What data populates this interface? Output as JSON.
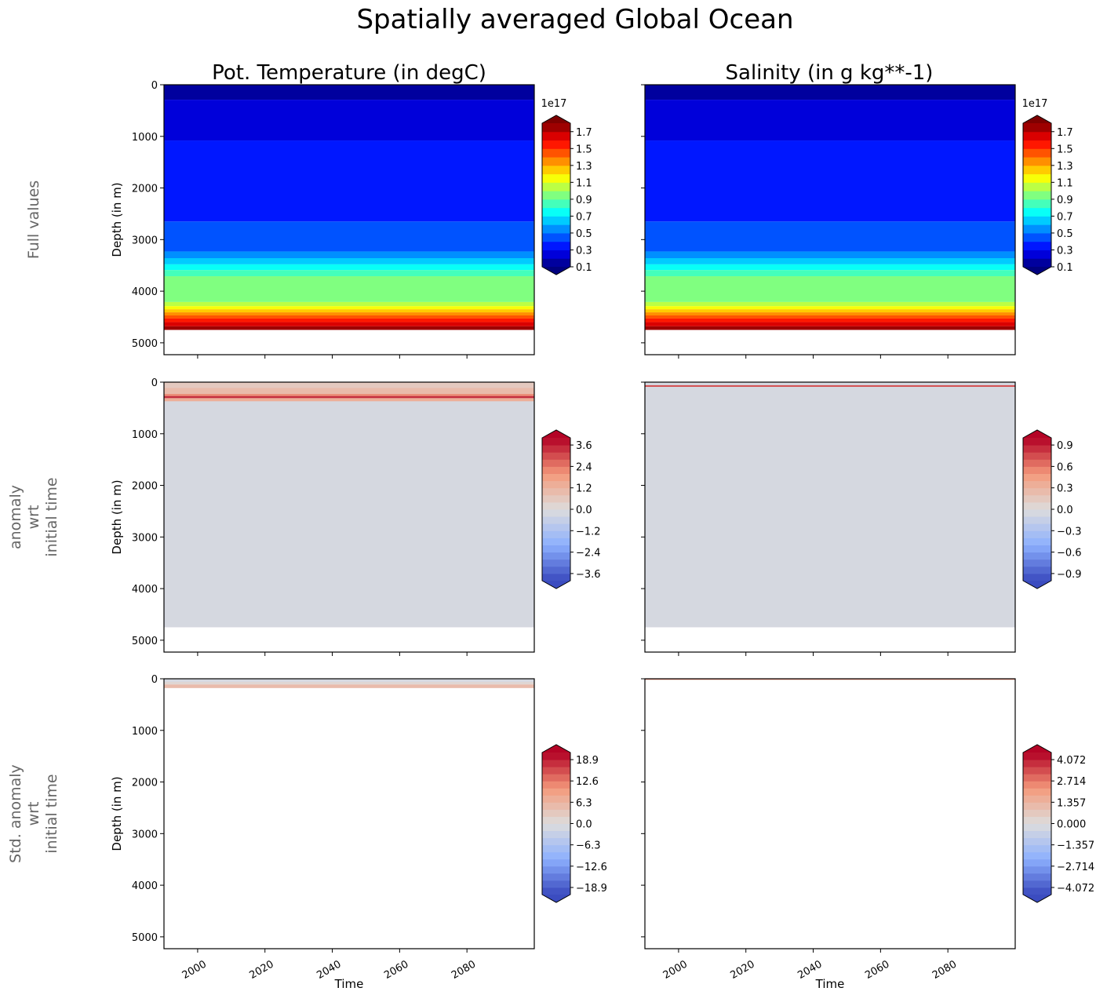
{
  "figure": {
    "title": "Spatially averaged Global Ocean",
    "column_titles": [
      "Pot. Temperature (in degC)",
      "Salinity (in g kg**-1)"
    ],
    "row_labels": [
      [
        "Full values"
      ],
      [
        "anomaly",
        "wrt",
        "initial time"
      ],
      [
        "Std. anomaly",
        "wrt",
        "initial time"
      ]
    ]
  },
  "chart_data": [
    {
      "type": "heatmap",
      "row": 0,
      "col": 0,
      "colormap": "jet",
      "xlabel": "",
      "ylabel": "Depth (in m)",
      "xlim": [
        1990,
        2100
      ],
      "ylim": [
        5230,
        0
      ],
      "xticks": [
        2000,
        2020,
        2040,
        2060,
        2080
      ],
      "xtick_labels_shown": false,
      "yticks": [
        0,
        1000,
        2000,
        3000,
        4000,
        5000
      ],
      "ytick_labels_shown": true,
      "levels": {
        "min": 0.1,
        "max": 1.8,
        "step": 0.1
      },
      "extend": "both",
      "colorbar_ticks": [
        0.1,
        0.3,
        0.5,
        0.7,
        0.9,
        1.1,
        1.3,
        1.5,
        1.7
      ],
      "colorbar_tick_labels": [
        "0.1",
        "0.3",
        "0.5",
        "0.7",
        "0.9",
        "1.1",
        "1.3",
        "1.5",
        "1.7"
      ],
      "colorbar_offset_text": "1e17",
      "bands": [
        {
          "depth": [
            0,
            290
          ],
          "value": 0.15
        },
        {
          "depth": [
            290,
            1080
          ],
          "value": 0.25
        },
        {
          "depth": [
            1080,
            2650
          ],
          "value": 0.35
        },
        {
          "depth": [
            2650,
            3230
          ],
          "value": 0.45
        },
        {
          "depth": [
            3230,
            3360
          ],
          "value": 0.55
        },
        {
          "depth": [
            3360,
            3480
          ],
          "value": 0.65
        },
        {
          "depth": [
            3480,
            3590
          ],
          "value": 0.75
        },
        {
          "depth": [
            3590,
            3710
          ],
          "value": 0.85
        },
        {
          "depth": [
            3710,
            4210
          ],
          "value": 0.95
        },
        {
          "depth": [
            4210,
            4290
          ],
          "value": 1.05
        },
        {
          "depth": [
            4290,
            4350
          ],
          "value": 1.15
        },
        {
          "depth": [
            4350,
            4410
          ],
          "value": 1.25
        },
        {
          "depth": [
            4410,
            4470
          ],
          "value": 1.35
        },
        {
          "depth": [
            4470,
            4530
          ],
          "value": 1.45
        },
        {
          "depth": [
            4530,
            4600
          ],
          "value": 1.55
        },
        {
          "depth": [
            4600,
            4680
          ],
          "value": 1.65
        },
        {
          "depth": [
            4680,
            4750
          ],
          "value": 1.75
        }
      ]
    },
    {
      "type": "heatmap",
      "row": 0,
      "col": 1,
      "colormap": "jet",
      "xlabel": "",
      "ylabel": "",
      "xlim": [
        1990,
        2100
      ],
      "ylim": [
        5230,
        0
      ],
      "xticks": [
        2000,
        2020,
        2040,
        2060,
        2080
      ],
      "xtick_labels_shown": false,
      "yticks": [
        0,
        1000,
        2000,
        3000,
        4000,
        5000
      ],
      "ytick_labels_shown": false,
      "levels": {
        "min": 0.1,
        "max": 1.8,
        "step": 0.1
      },
      "extend": "both",
      "colorbar_ticks": [
        0.1,
        0.3,
        0.5,
        0.7,
        0.9,
        1.1,
        1.3,
        1.5,
        1.7
      ],
      "colorbar_tick_labels": [
        "0.1",
        "0.3",
        "0.5",
        "0.7",
        "0.9",
        "1.1",
        "1.3",
        "1.5",
        "1.7"
      ],
      "colorbar_offset_text": "1e17",
      "bands": [
        {
          "depth": [
            0,
            290
          ],
          "value": 0.15
        },
        {
          "depth": [
            290,
            1080
          ],
          "value": 0.25
        },
        {
          "depth": [
            1080,
            2650
          ],
          "value": 0.35
        },
        {
          "depth": [
            2650,
            3230
          ],
          "value": 0.45
        },
        {
          "depth": [
            3230,
            3360
          ],
          "value": 0.55
        },
        {
          "depth": [
            3360,
            3480
          ],
          "value": 0.65
        },
        {
          "depth": [
            3480,
            3590
          ],
          "value": 0.75
        },
        {
          "depth": [
            3590,
            3710
          ],
          "value": 0.85
        },
        {
          "depth": [
            3710,
            4210
          ],
          "value": 0.95
        },
        {
          "depth": [
            4210,
            4290
          ],
          "value": 1.05
        },
        {
          "depth": [
            4290,
            4350
          ],
          "value": 1.15
        },
        {
          "depth": [
            4350,
            4410
          ],
          "value": 1.25
        },
        {
          "depth": [
            4410,
            4470
          ],
          "value": 1.35
        },
        {
          "depth": [
            4470,
            4530
          ],
          "value": 1.45
        },
        {
          "depth": [
            4530,
            4600
          ],
          "value": 1.55
        },
        {
          "depth": [
            4600,
            4680
          ],
          "value": 1.65
        },
        {
          "depth": [
            4680,
            4750
          ],
          "value": 1.75
        }
      ]
    },
    {
      "type": "heatmap",
      "row": 1,
      "col": 0,
      "colormap": "coolwarm",
      "xlabel": "",
      "ylabel": "Depth (in m)",
      "xlim": [
        1990,
        2100
      ],
      "ylim": [
        5230,
        0
      ],
      "xticks": [
        2000,
        2020,
        2040,
        2060,
        2080
      ],
      "xtick_labels_shown": false,
      "yticks": [
        0,
        1000,
        2000,
        3000,
        4000,
        5000
      ],
      "ytick_labels_shown": true,
      "levels": {
        "min": -4.0,
        "max": 4.0,
        "step": 0.4
      },
      "extend": "both",
      "colorbar_ticks": [
        3.6,
        2.4,
        1.2,
        0.0,
        -1.2,
        -2.4,
        -3.6
      ],
      "colorbar_tick_labels": [
        "3.6",
        "2.4",
        "1.2",
        "0.0",
        "−1.2",
        "−2.4",
        "−3.6"
      ],
      "bands": [
        {
          "depth": [
            0,
            4750
          ],
          "value": -0.2
        },
        {
          "depth": [
            0,
            110
          ],
          "value": 0.6
        },
        {
          "depth": [
            110,
            230
          ],
          "value": 1.0
        },
        {
          "depth": [
            230,
            270
          ],
          "value": 2.2
        },
        {
          "depth": [
            270,
            310
          ],
          "value": 3.4
        },
        {
          "depth": [
            310,
            370
          ],
          "value": 1.4
        }
      ]
    },
    {
      "type": "heatmap",
      "row": 1,
      "col": 1,
      "colormap": "coolwarm",
      "xlabel": "",
      "ylabel": "",
      "xlim": [
        1990,
        2100
      ],
      "ylim": [
        5230,
        0
      ],
      "xticks": [
        2000,
        2020,
        2040,
        2060,
        2080
      ],
      "xtick_labels_shown": false,
      "yticks": [
        0,
        1000,
        2000,
        3000,
        4000,
        5000
      ],
      "ytick_labels_shown": false,
      "levels": {
        "min": -1.0,
        "max": 1.0,
        "step": 0.1
      },
      "extend": "both",
      "colorbar_ticks": [
        0.9,
        0.6,
        0.3,
        0.0,
        -0.3,
        -0.6,
        -0.9
      ],
      "colorbar_tick_labels": [
        "0.9",
        "0.6",
        "0.3",
        "0.0",
        "−0.3",
        "−0.6",
        "−0.9"
      ],
      "bands": [
        {
          "depth": [
            0,
            4750
          ],
          "value": -0.05
        },
        {
          "depth": [
            60,
            90
          ],
          "value": 0.75
        }
      ]
    },
    {
      "type": "heatmap",
      "row": 2,
      "col": 0,
      "colormap": "coolwarm",
      "xlabel": "Time",
      "ylabel": "Depth (in m)",
      "xlim": [
        1990,
        2100
      ],
      "ylim": [
        5230,
        0
      ],
      "xticks": [
        2000,
        2020,
        2040,
        2060,
        2080
      ],
      "xtick_labels_shown": true,
      "yticks": [
        0,
        1000,
        2000,
        3000,
        4000,
        5000
      ],
      "ytick_labels_shown": true,
      "levels": {
        "min": -21.0,
        "max": 21.0,
        "step": 2.1
      },
      "extend": "both",
      "colorbar_ticks": [
        18.9,
        12.6,
        6.3,
        0.0,
        -6.3,
        -12.6,
        -18.9
      ],
      "colorbar_tick_labels": [
        "18.9",
        "12.6",
        "6.3",
        "0.0",
        "−6.3",
        "−12.6",
        "−18.9"
      ],
      "bands": [
        {
          "depth": [
            0,
            60
          ],
          "value": -1.0
        },
        {
          "depth": [
            60,
            110
          ],
          "value": 1.0
        },
        {
          "depth": [
            110,
            180
          ],
          "value": 5.0
        }
      ]
    },
    {
      "type": "heatmap",
      "row": 2,
      "col": 1,
      "colormap": "coolwarm",
      "xlabel": "Time",
      "ylabel": "",
      "xlim": [
        1990,
        2100
      ],
      "ylim": [
        5230,
        0
      ],
      "xticks": [
        2000,
        2020,
        2040,
        2060,
        2080
      ],
      "xtick_labels_shown": true,
      "yticks": [
        0,
        1000,
        2000,
        3000,
        4000,
        5000
      ],
      "ytick_labels_shown": false,
      "levels": {
        "min": -4.524,
        "max": 4.524,
        "step": 0.4524
      },
      "extend": "both",
      "colorbar_ticks": [
        4.072,
        2.714,
        1.357,
        0.0,
        -1.357,
        -2.714,
        -4.072
      ],
      "colorbar_tick_labels": [
        "4.072",
        "2.714",
        "1.357",
        "0.000",
        "−1.357",
        "−2.714",
        "−4.072"
      ],
      "bands": [
        {
          "depth": [
            0,
            20
          ],
          "value": 2.5
        }
      ]
    }
  ]
}
